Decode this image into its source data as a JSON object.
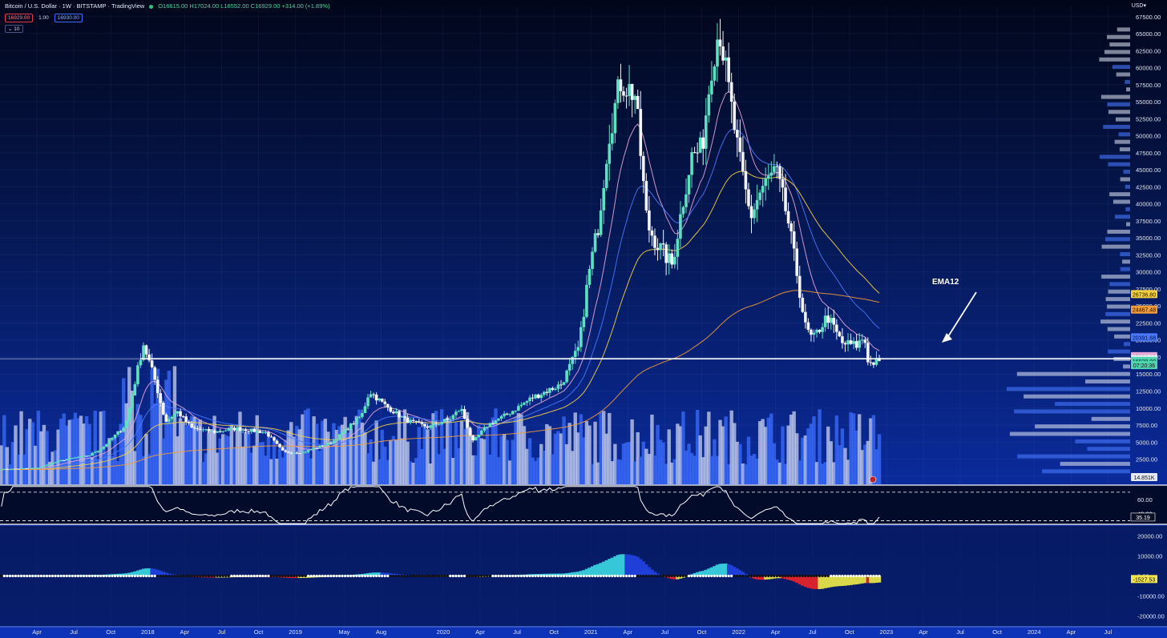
{
  "header": {
    "title": "Bitcoin / U.S. Dollar · 1W · BITSTAMP · TradingView",
    "ohlc": "O16615.00 H17024.00 L16552.00 C16929.00 +314.00 (+1.89%)",
    "sell": "16929.00",
    "spread": "1.00",
    "buy": "16930.00",
    "interval_chip": "10",
    "currency": "USD"
  },
  "annotation": {
    "label": "EMA12"
  },
  "price_tags": [
    {
      "label": "26736.80",
      "value": 26736.8,
      "color": "#f5d142"
    },
    {
      "label": "24467.48",
      "value": 24467.48,
      "color": "#f39c3a"
    },
    {
      "label": "20391.68",
      "value": 20391.68,
      "color": "#4a78ff"
    },
    {
      "label": "17631.18",
      "value": 17631.18,
      "color": "#e8a6d8"
    },
    {
      "label": "17234.99",
      "value": 17234.99,
      "color": "#e6e9f2"
    },
    {
      "label": "16929.00",
      "value": 16929.0,
      "color": "#4fd6b0"
    },
    {
      "label": "07:20:36",
      "value": 16300,
      "color": "#4fd6b0"
    }
  ],
  "volume_tag": "14.851K",
  "rsi_tag": "35.19",
  "macd_tag": "-1527.53",
  "chart_data": [
    {
      "type": "candlestick",
      "title": "Bitcoin / U.S. Dollar · 1W · BITSTAMP",
      "y_ticks": [
        0,
        2500,
        5000,
        7500,
        10000,
        12500,
        15000,
        17500,
        20000,
        22500,
        25000,
        27500,
        30000,
        32500,
        35000,
        37500,
        40000,
        42500,
        45000,
        47500,
        50000,
        52500,
        55000,
        57500,
        60000,
        62500,
        65000,
        67500
      ],
      "y_tick_labels": [
        "0.00",
        "2500.00",
        "5000.00",
        "7500.00",
        "10000.00",
        "12500.00",
        "15000.00",
        "17500.00",
        "20000.00",
        "22500.00",
        "25000.00",
        "27500.00",
        "30000.00",
        "32500.00",
        "35000.00",
        "37500.00",
        "40000.00",
        "42500.00",
        "45000.00",
        "47500.00",
        "50000.00",
        "52500.00",
        "55000.00",
        "57500.00",
        "60000.00",
        "62500.00",
        "65000.00",
        "67500.00"
      ],
      "ylim": [
        -1200,
        69000
      ],
      "x_ticks": [
        "Apr",
        "Jul",
        "Oct",
        "2018",
        "Apr",
        "Jul",
        "Oct",
        "2019",
        "May",
        "Aug",
        "2020",
        "Apr",
        "Jul",
        "Oct",
        "2021",
        "Apr",
        "Jul",
        "Oct",
        "2022",
        "Apr",
        "Jul",
        "Oct",
        "2023",
        "Apr",
        "Jul",
        "Oct",
        "2024",
        "Apr",
        "Jul"
      ],
      "x_tick_years": [
        2017.25,
        2017.5,
        2017.75,
        2018.0,
        2018.25,
        2018.5,
        2018.75,
        2019.0,
        2019.33,
        2019.58,
        2020.0,
        2020.25,
        2020.5,
        2020.75,
        2021.0,
        2021.25,
        2021.5,
        2021.75,
        2022.0,
        2022.25,
        2022.5,
        2022.75,
        2023.0,
        2023.25,
        2023.5,
        2023.75,
        2024.0,
        2024.25,
        2024.5
      ],
      "price_path": [
        [
          2017.0,
          1000
        ],
        [
          2017.25,
          1200
        ],
        [
          2017.45,
          2500
        ],
        [
          2017.6,
          3000
        ],
        [
          2017.7,
          4300
        ],
        [
          2017.85,
          7500
        ],
        [
          2017.97,
          19500
        ],
        [
          2018.05,
          14000
        ],
        [
          2018.12,
          8000
        ],
        [
          2018.2,
          9500
        ],
        [
          2018.3,
          7000
        ],
        [
          2018.45,
          6500
        ],
        [
          2018.6,
          7000
        ],
        [
          2018.8,
          6400
        ],
        [
          2018.92,
          3500
        ],
        [
          2019.05,
          3500
        ],
        [
          2019.25,
          5000
        ],
        [
          2019.45,
          9000
        ],
        [
          2019.5,
          12500
        ],
        [
          2019.6,
          10500
        ],
        [
          2019.75,
          8200
        ],
        [
          2019.9,
          7200
        ],
        [
          2020.05,
          8500
        ],
        [
          2020.12,
          10000
        ],
        [
          2020.2,
          5000
        ],
        [
          2020.3,
          7500
        ],
        [
          2020.45,
          9300
        ],
        [
          2020.6,
          11500
        ],
        [
          2020.8,
          13500
        ],
        [
          2020.92,
          19000
        ],
        [
          2020.98,
          29000
        ],
        [
          2021.05,
          37000
        ],
        [
          2021.12,
          50000
        ],
        [
          2021.2,
          58000
        ],
        [
          2021.3,
          56000
        ],
        [
          2021.38,
          37000
        ],
        [
          2021.45,
          34000
        ],
        [
          2021.55,
          31000
        ],
        [
          2021.62,
          40000
        ],
        [
          2021.68,
          47000
        ],
        [
          2021.75,
          48000
        ],
        [
          2021.82,
          61000
        ],
        [
          2021.87,
          66000
        ],
        [
          2021.93,
          57000
        ],
        [
          2022.0,
          47000
        ],
        [
          2022.08,
          38000
        ],
        [
          2022.15,
          42000
        ],
        [
          2022.25,
          45000
        ],
        [
          2022.33,
          38000
        ],
        [
          2022.4,
          29000
        ],
        [
          2022.45,
          22000
        ],
        [
          2022.5,
          20000
        ],
        [
          2022.6,
          23500
        ],
        [
          2022.7,
          19500
        ],
        [
          2022.8,
          19200
        ],
        [
          2022.85,
          20500
        ],
        [
          2022.88,
          16500
        ],
        [
          2022.95,
          16929
        ]
      ],
      "horizontal_line": 17234.99,
      "series": [
        {
          "name": "EMA12",
          "color": "#e8a6d8",
          "last": 17631.18
        },
        {
          "name": "",
          "color": "#4a78ff",
          "last": 20391.68
        },
        {
          "name": "",
          "color": "#f5d142",
          "last": 26736.8
        },
        {
          "name": "",
          "color": "#f39c3a",
          "last": 24467.48
        }
      ]
    },
    {
      "type": "line",
      "y_ticks": [
        40,
        60
      ],
      "y_tick_labels": [
        "40.00",
        "60.00"
      ],
      "last": 35.19
    },
    {
      "type": "bar",
      "y_ticks": [
        20000,
        10000,
        0,
        -10000,
        -20000
      ],
      "y_tick_labels": [
        "20000.00",
        "10000.00",
        "0.00",
        "-10000.00",
        "-20000.00"
      ],
      "last": -1527.53
    }
  ]
}
